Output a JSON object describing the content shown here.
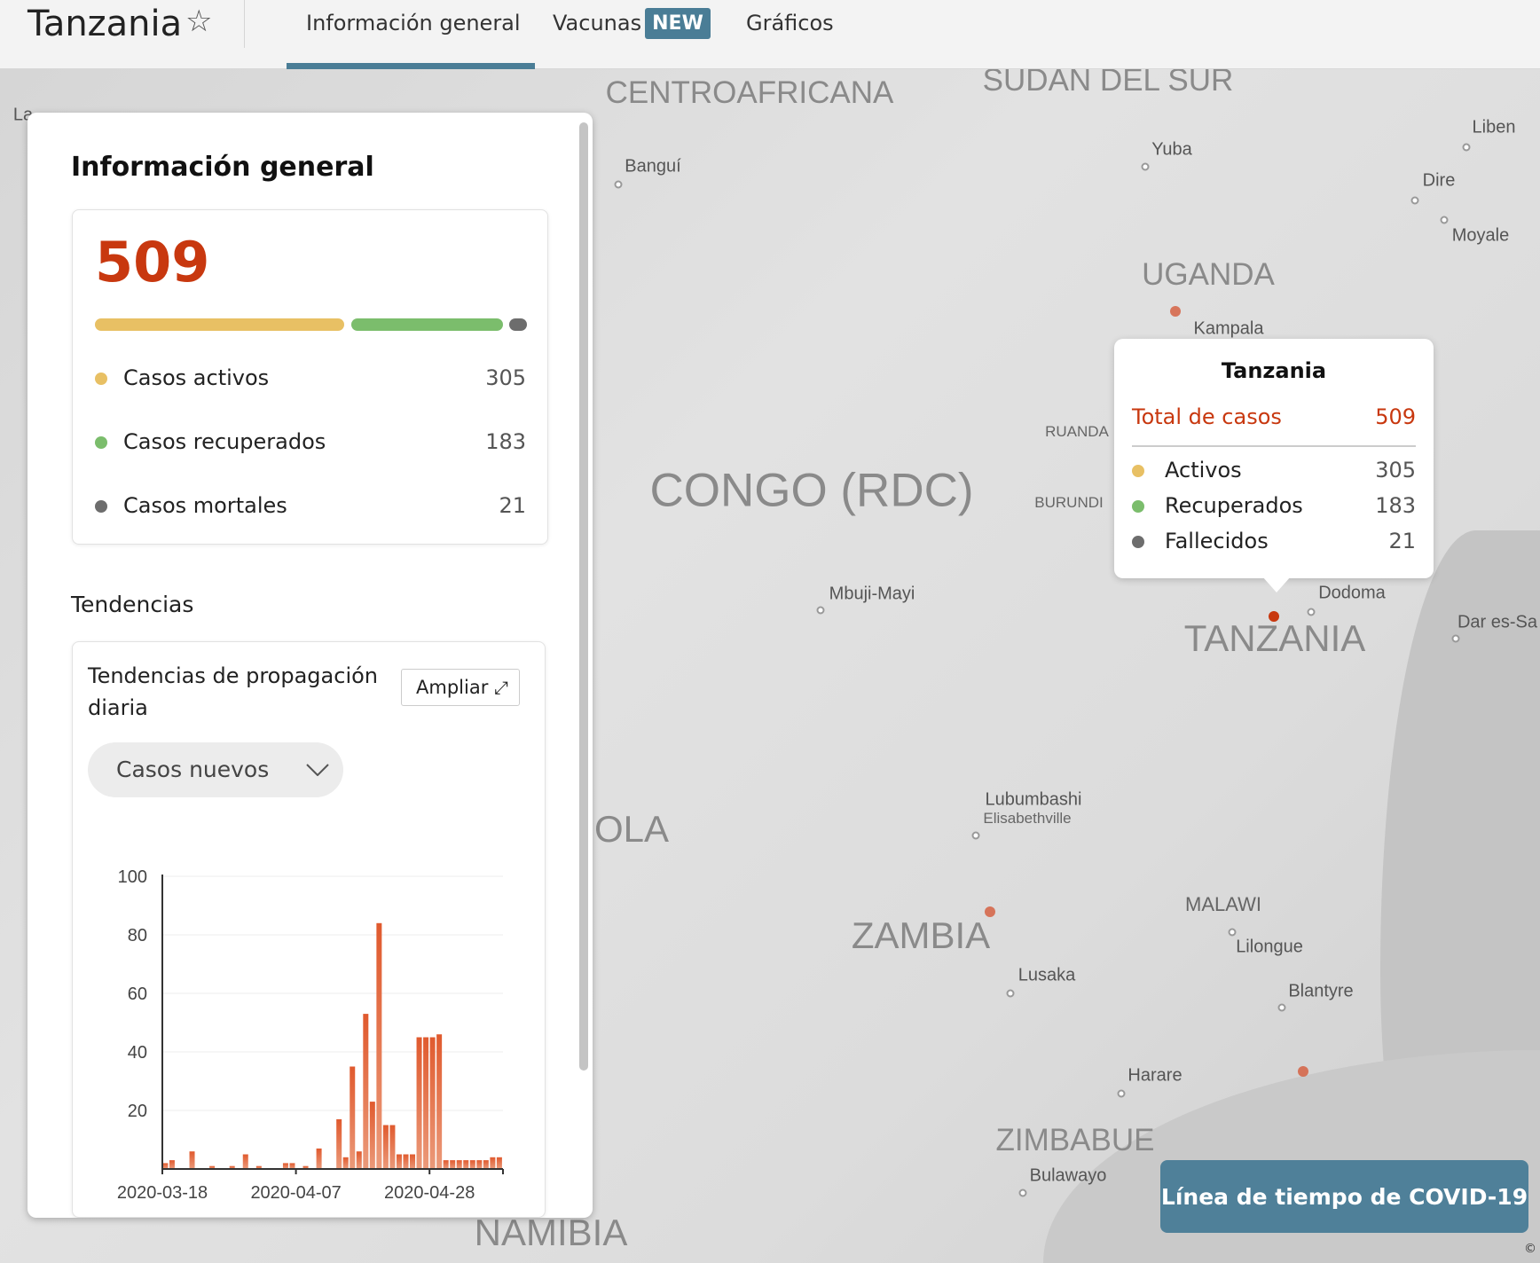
{
  "header": {
    "title": "Tanzania",
    "tabs": [
      "Información general",
      "Vacunas",
      "Gráficos"
    ],
    "new_badge": "NEW"
  },
  "panel": {
    "heading": "Información general",
    "total": "509",
    "progress": {
      "active": 305,
      "recovered": 183,
      "deaths": 21
    },
    "stats": [
      {
        "label": "Casos activos",
        "value": "305"
      },
      {
        "label": "Casos recuperados",
        "value": "183"
      },
      {
        "label": "Casos mortales",
        "value": "21"
      }
    ],
    "trends_heading": "Tendencias",
    "trend_card": {
      "title_line1": "Tendencias de propagación",
      "title_line2": "diaria",
      "expand_label": "Ampliar",
      "dropdown_value": "Casos nuevos"
    }
  },
  "colors": {
    "active": "#e8c064",
    "recovered": "#7bbd6c",
    "deaths": "#6d6d6d",
    "accent": "#c8380f",
    "bar": "#e2653c",
    "tab": "#4a7d96"
  },
  "chart_data": {
    "type": "bar",
    "title": "Tendencias de propagación diaria",
    "xlabel": "",
    "ylabel": "Casos nuevos",
    "ylim": [
      0,
      100
    ],
    "yticks": [
      "20",
      "40",
      "60",
      "80",
      "100"
    ],
    "xtick_labels": [
      {
        "label": "2020-03-18",
        "index": 0
      },
      {
        "label": "2020-04-07",
        "index": 20
      },
      {
        "label": "2020-04-28",
        "index": 40
      }
    ],
    "values": [
      2,
      3,
      0,
      0,
      6,
      0,
      0,
      1,
      0,
      0,
      1,
      0,
      5,
      0,
      1,
      0,
      0,
      0,
      2,
      2,
      0,
      1,
      0,
      7,
      0,
      0,
      17,
      4,
      35,
      6,
      53,
      23,
      84,
      15,
      15,
      5,
      5,
      5,
      45,
      45,
      45,
      46,
      3,
      3,
      3,
      3,
      3,
      3,
      3,
      4,
      4
    ]
  },
  "tooltip": {
    "title": "Tanzania",
    "total_label": "Total de casos",
    "total": "509",
    "rows": [
      {
        "label": "Activos",
        "value": "305"
      },
      {
        "label": "Recuperados",
        "value": "183"
      },
      {
        "label": "Fallecidos",
        "value": "21"
      }
    ]
  },
  "timeline_button": "Línea de tiempo de COVID-19",
  "map": {
    "labels": [
      "CENTROAFRICANA",
      "SUDAN DEL SUR",
      "Liben",
      "Yuba",
      "Banguí",
      "Dire",
      "Moyale",
      "UGANDA",
      "Kampala",
      "RUANDA",
      "BURUNDI",
      "CONGO (RDC)",
      "Mbuji-Mayi",
      "Dodoma",
      "TANZANIA",
      "Dar es-Sa",
      "OLA",
      "Lubumbashi",
      "Elisabethville",
      "ZAMBIA",
      "MALAWI",
      "Lilongue",
      "Lusaka",
      "Blantyre",
      "Harare",
      "ZIMBABUE",
      "Bulawayo",
      "NAMIBIA",
      "La"
    ],
    "copyright": "©"
  }
}
